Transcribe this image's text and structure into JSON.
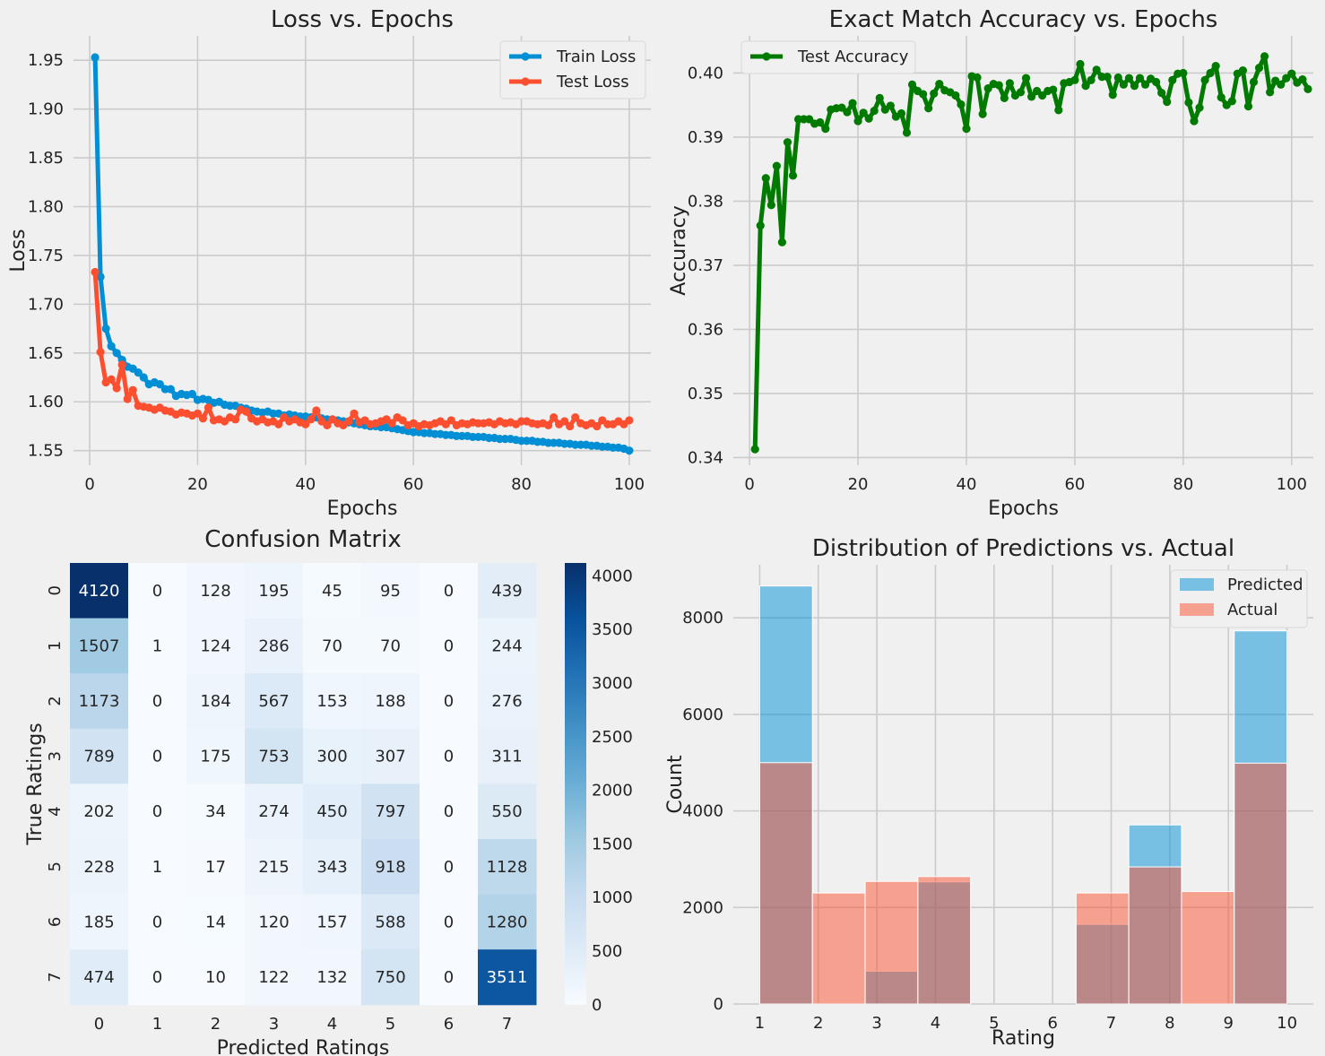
{
  "chart_data": [
    {
      "type": "line",
      "title": "Loss vs. Epochs",
      "xlabel": "Epochs",
      "ylabel": "Loss",
      "xlim": [
        -3,
        104
      ],
      "ylim": [
        1.535,
        1.975
      ],
      "xticks": [
        0,
        20,
        40,
        60,
        80,
        100
      ],
      "yticks": [
        1.55,
        1.6,
        1.65,
        1.7,
        1.75,
        1.8,
        1.85,
        1.9,
        1.95
      ],
      "ytick_labels": [
        "1.55",
        "1.60",
        "1.65",
        "1.70",
        "1.75",
        "1.80",
        "1.85",
        "1.90",
        "1.95"
      ],
      "legend_position": "top-right",
      "series": [
        {
          "name": "Train Loss",
          "color": "#008fd5",
          "values": [
            1.953,
            1.728,
            1.675,
            1.657,
            1.65,
            1.643,
            1.636,
            1.634,
            1.63,
            1.625,
            1.618,
            1.62,
            1.618,
            1.613,
            1.613,
            1.606,
            1.608,
            1.607,
            1.608,
            1.602,
            1.603,
            1.602,
            1.599,
            1.6,
            1.597,
            1.596,
            1.596,
            1.594,
            1.593,
            1.591,
            1.59,
            1.589,
            1.59,
            1.588,
            1.588,
            1.586,
            1.587,
            1.586,
            1.585,
            1.585,
            1.584,
            1.584,
            1.583,
            1.582,
            1.582,
            1.581,
            1.58,
            1.579,
            1.578,
            1.577,
            1.576,
            1.575,
            1.575,
            1.574,
            1.574,
            1.573,
            1.572,
            1.571,
            1.57,
            1.569,
            1.569,
            1.568,
            1.568,
            1.567,
            1.567,
            1.566,
            1.566,
            1.565,
            1.565,
            1.565,
            1.564,
            1.564,
            1.564,
            1.563,
            1.563,
            1.562,
            1.562,
            1.562,
            1.561,
            1.56,
            1.56,
            1.56,
            1.559,
            1.559,
            1.558,
            1.558,
            1.558,
            1.557,
            1.557,
            1.556,
            1.556,
            1.556,
            1.555,
            1.555,
            1.554,
            1.554,
            1.553,
            1.553,
            1.552,
            1.55
          ]
        },
        {
          "name": "Test Loss",
          "color": "#fc4f30",
          "values": [
            1.733,
            1.651,
            1.62,
            1.623,
            1.614,
            1.638,
            1.603,
            1.612,
            1.596,
            1.595,
            1.594,
            1.592,
            1.594,
            1.591,
            1.59,
            1.587,
            1.589,
            1.588,
            1.586,
            1.588,
            1.583,
            1.594,
            1.581,
            1.582,
            1.58,
            1.584,
            1.582,
            1.592,
            1.59,
            1.583,
            1.58,
            1.582,
            1.579,
            1.58,
            1.577,
            1.584,
            1.58,
            1.582,
            1.579,
            1.577,
            1.582,
            1.591,
            1.58,
            1.576,
            1.582,
            1.578,
            1.576,
            1.58,
            1.588,
            1.579,
            1.581,
            1.577,
            1.578,
            1.58,
            1.582,
            1.578,
            1.584,
            1.581,
            1.576,
            1.578,
            1.575,
            1.577,
            1.576,
            1.578,
            1.58,
            1.577,
            1.581,
            1.576,
            1.578,
            1.577,
            1.579,
            1.578,
            1.578,
            1.579,
            1.577,
            1.58,
            1.578,
            1.579,
            1.577,
            1.58,
            1.58,
            1.578,
            1.577,
            1.578,
            1.576,
            1.584,
            1.577,
            1.58,
            1.575,
            1.584,
            1.578,
            1.576,
            1.578,
            1.575,
            1.581,
            1.577,
            1.577,
            1.58,
            1.577,
            1.581
          ]
        }
      ]
    },
    {
      "type": "line",
      "title": "Exact Match Accuracy vs. Epochs",
      "xlabel": "Epochs",
      "ylabel": "Accuracy",
      "xlim": [
        -3,
        104
      ],
      "ylim": [
        0.3388,
        0.4058
      ],
      "xticks": [
        0,
        20,
        40,
        60,
        80,
        100
      ],
      "yticks": [
        0.34,
        0.35,
        0.36,
        0.37,
        0.38,
        0.39,
        0.4
      ],
      "ytick_labels": [
        "0.34",
        "0.35",
        "0.36",
        "0.37",
        "0.38",
        "0.39",
        "0.40"
      ],
      "legend_position": "top-left",
      "series": [
        {
          "name": "Test Accuracy",
          "color": "#007a00",
          "values": [
            0.3413,
            0.3762,
            0.3836,
            0.3794,
            0.3855,
            0.3736,
            0.3892,
            0.384,
            0.3928,
            0.3928,
            0.3928,
            0.3921,
            0.3923,
            0.3913,
            0.3943,
            0.3945,
            0.3946,
            0.3939,
            0.3953,
            0.3925,
            0.3938,
            0.3929,
            0.3941,
            0.3961,
            0.3943,
            0.3949,
            0.3932,
            0.3937,
            0.3907,
            0.3982,
            0.3972,
            0.3967,
            0.3945,
            0.3968,
            0.3983,
            0.3973,
            0.397,
            0.3965,
            0.3951,
            0.3913,
            0.3995,
            0.3993,
            0.3936,
            0.3976,
            0.3983,
            0.3981,
            0.3961,
            0.3984,
            0.3965,
            0.397,
            0.3992,
            0.3963,
            0.3972,
            0.3965,
            0.3972,
            0.3974,
            0.3942,
            0.3984,
            0.3986,
            0.3989,
            0.4014,
            0.398,
            0.3989,
            0.4005,
            0.3994,
            0.3994,
            0.3966,
            0.3993,
            0.3982,
            0.3992,
            0.398,
            0.3992,
            0.3982,
            0.3991,
            0.3986,
            0.3969,
            0.3955,
            0.3989,
            0.3999,
            0.4,
            0.3954,
            0.3925,
            0.3946,
            0.3989,
            0.4,
            0.4011,
            0.3962,
            0.395,
            0.3956,
            0.3999,
            0.4004,
            0.3948,
            0.3986,
            0.4008,
            0.4026,
            0.397,
            0.3988,
            0.3982,
            0.3992,
            0.3999,
            0.3985,
            0.399,
            0.3975
          ]
        }
      ]
    },
    {
      "type": "heatmap",
      "title": "Confusion Matrix",
      "xlabel": "Predicted Ratings",
      "ylabel": "True Ratings",
      "x_categories": [
        "0",
        "1",
        "2",
        "3",
        "4",
        "5",
        "6",
        "7"
      ],
      "y_categories": [
        "0",
        "1",
        "2",
        "3",
        "4",
        "5",
        "6",
        "7"
      ],
      "vmin": 0,
      "vmax": 4120,
      "colormap": "Blues",
      "colorbar_ticks": [
        0,
        500,
        1000,
        1500,
        2000,
        2500,
        3000,
        3500,
        4000
      ],
      "values": [
        [
          4120,
          0,
          128,
          195,
          45,
          95,
          0,
          439
        ],
        [
          1507,
          1,
          124,
          286,
          70,
          70,
          0,
          244
        ],
        [
          1173,
          0,
          184,
          567,
          153,
          188,
          0,
          276
        ],
        [
          789,
          0,
          175,
          753,
          300,
          307,
          0,
          311
        ],
        [
          202,
          0,
          34,
          274,
          450,
          797,
          0,
          550
        ],
        [
          228,
          1,
          17,
          215,
          343,
          918,
          0,
          1128
        ],
        [
          185,
          0,
          14,
          120,
          157,
          588,
          0,
          1280
        ],
        [
          474,
          0,
          10,
          122,
          132,
          750,
          0,
          3511
        ]
      ]
    },
    {
      "type": "bar",
      "title": "Distribution of Predictions vs. Actual",
      "xlabel": "Rating",
      "ylabel": "Count",
      "xlim": [
        0.55,
        10.45
      ],
      "ylim": [
        0,
        9100
      ],
      "xticks": [
        1,
        2,
        3,
        4,
        5,
        6,
        7,
        8,
        9,
        10
      ],
      "yticks": [
        0,
        2000,
        4000,
        6000,
        8000
      ],
      "legend_position": "top-right",
      "bin_edges": [
        1.0,
        1.9,
        2.8,
        3.7,
        4.6,
        5.5,
        6.4,
        7.3,
        8.2,
        9.1,
        10.0
      ],
      "series": [
        {
          "name": "Predicted",
          "color": "#008fd5",
          "values": [
            8660,
            0,
            680,
            2530,
            0,
            0,
            1650,
            3710,
            0,
            7730
          ]
        },
        {
          "name": "Actual",
          "color": "#fc4f30",
          "values": [
            5000,
            2300,
            2540,
            2640,
            0,
            0,
            2300,
            2840,
            2330,
            4990
          ]
        }
      ]
    }
  ]
}
